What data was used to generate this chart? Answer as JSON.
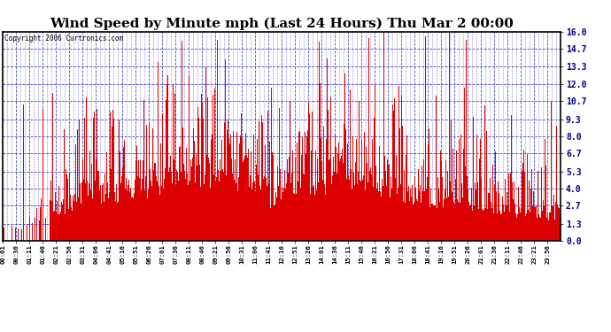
{
  "title": "Wind Speed by Minute mph (Last 24 Hours) Thu Mar 2 00:00",
  "copyright_text": "Copyright 2006 Curtronics.com",
  "yticks": [
    0.0,
    1.3,
    2.7,
    4.0,
    5.3,
    6.7,
    8.0,
    9.3,
    10.7,
    12.0,
    13.3,
    14.7,
    16.0
  ],
  "ymax": 16.0,
  "ymin": 0.0,
  "bar_color": "#dd0000",
  "bg_color": "#ffffff",
  "plot_bg_color": "#ffffff",
  "grid_color": "#3333cc",
  "title_fontsize": 11,
  "tick_label_color": "#000088",
  "x_tick_labels": [
    "00:01",
    "00:36",
    "01:11",
    "01:46",
    "02:21",
    "02:56",
    "03:31",
    "04:06",
    "04:41",
    "05:16",
    "05:51",
    "06:26",
    "07:01",
    "07:36",
    "08:11",
    "08:46",
    "09:21",
    "09:56",
    "10:31",
    "11:06",
    "11:41",
    "12:16",
    "12:51",
    "13:26",
    "14:01",
    "14:36",
    "15:11",
    "15:46",
    "16:21",
    "16:56",
    "17:31",
    "18:06",
    "18:41",
    "19:16",
    "19:51",
    "20:26",
    "21:01",
    "21:36",
    "22:11",
    "22:46",
    "23:21",
    "23:56"
  ]
}
